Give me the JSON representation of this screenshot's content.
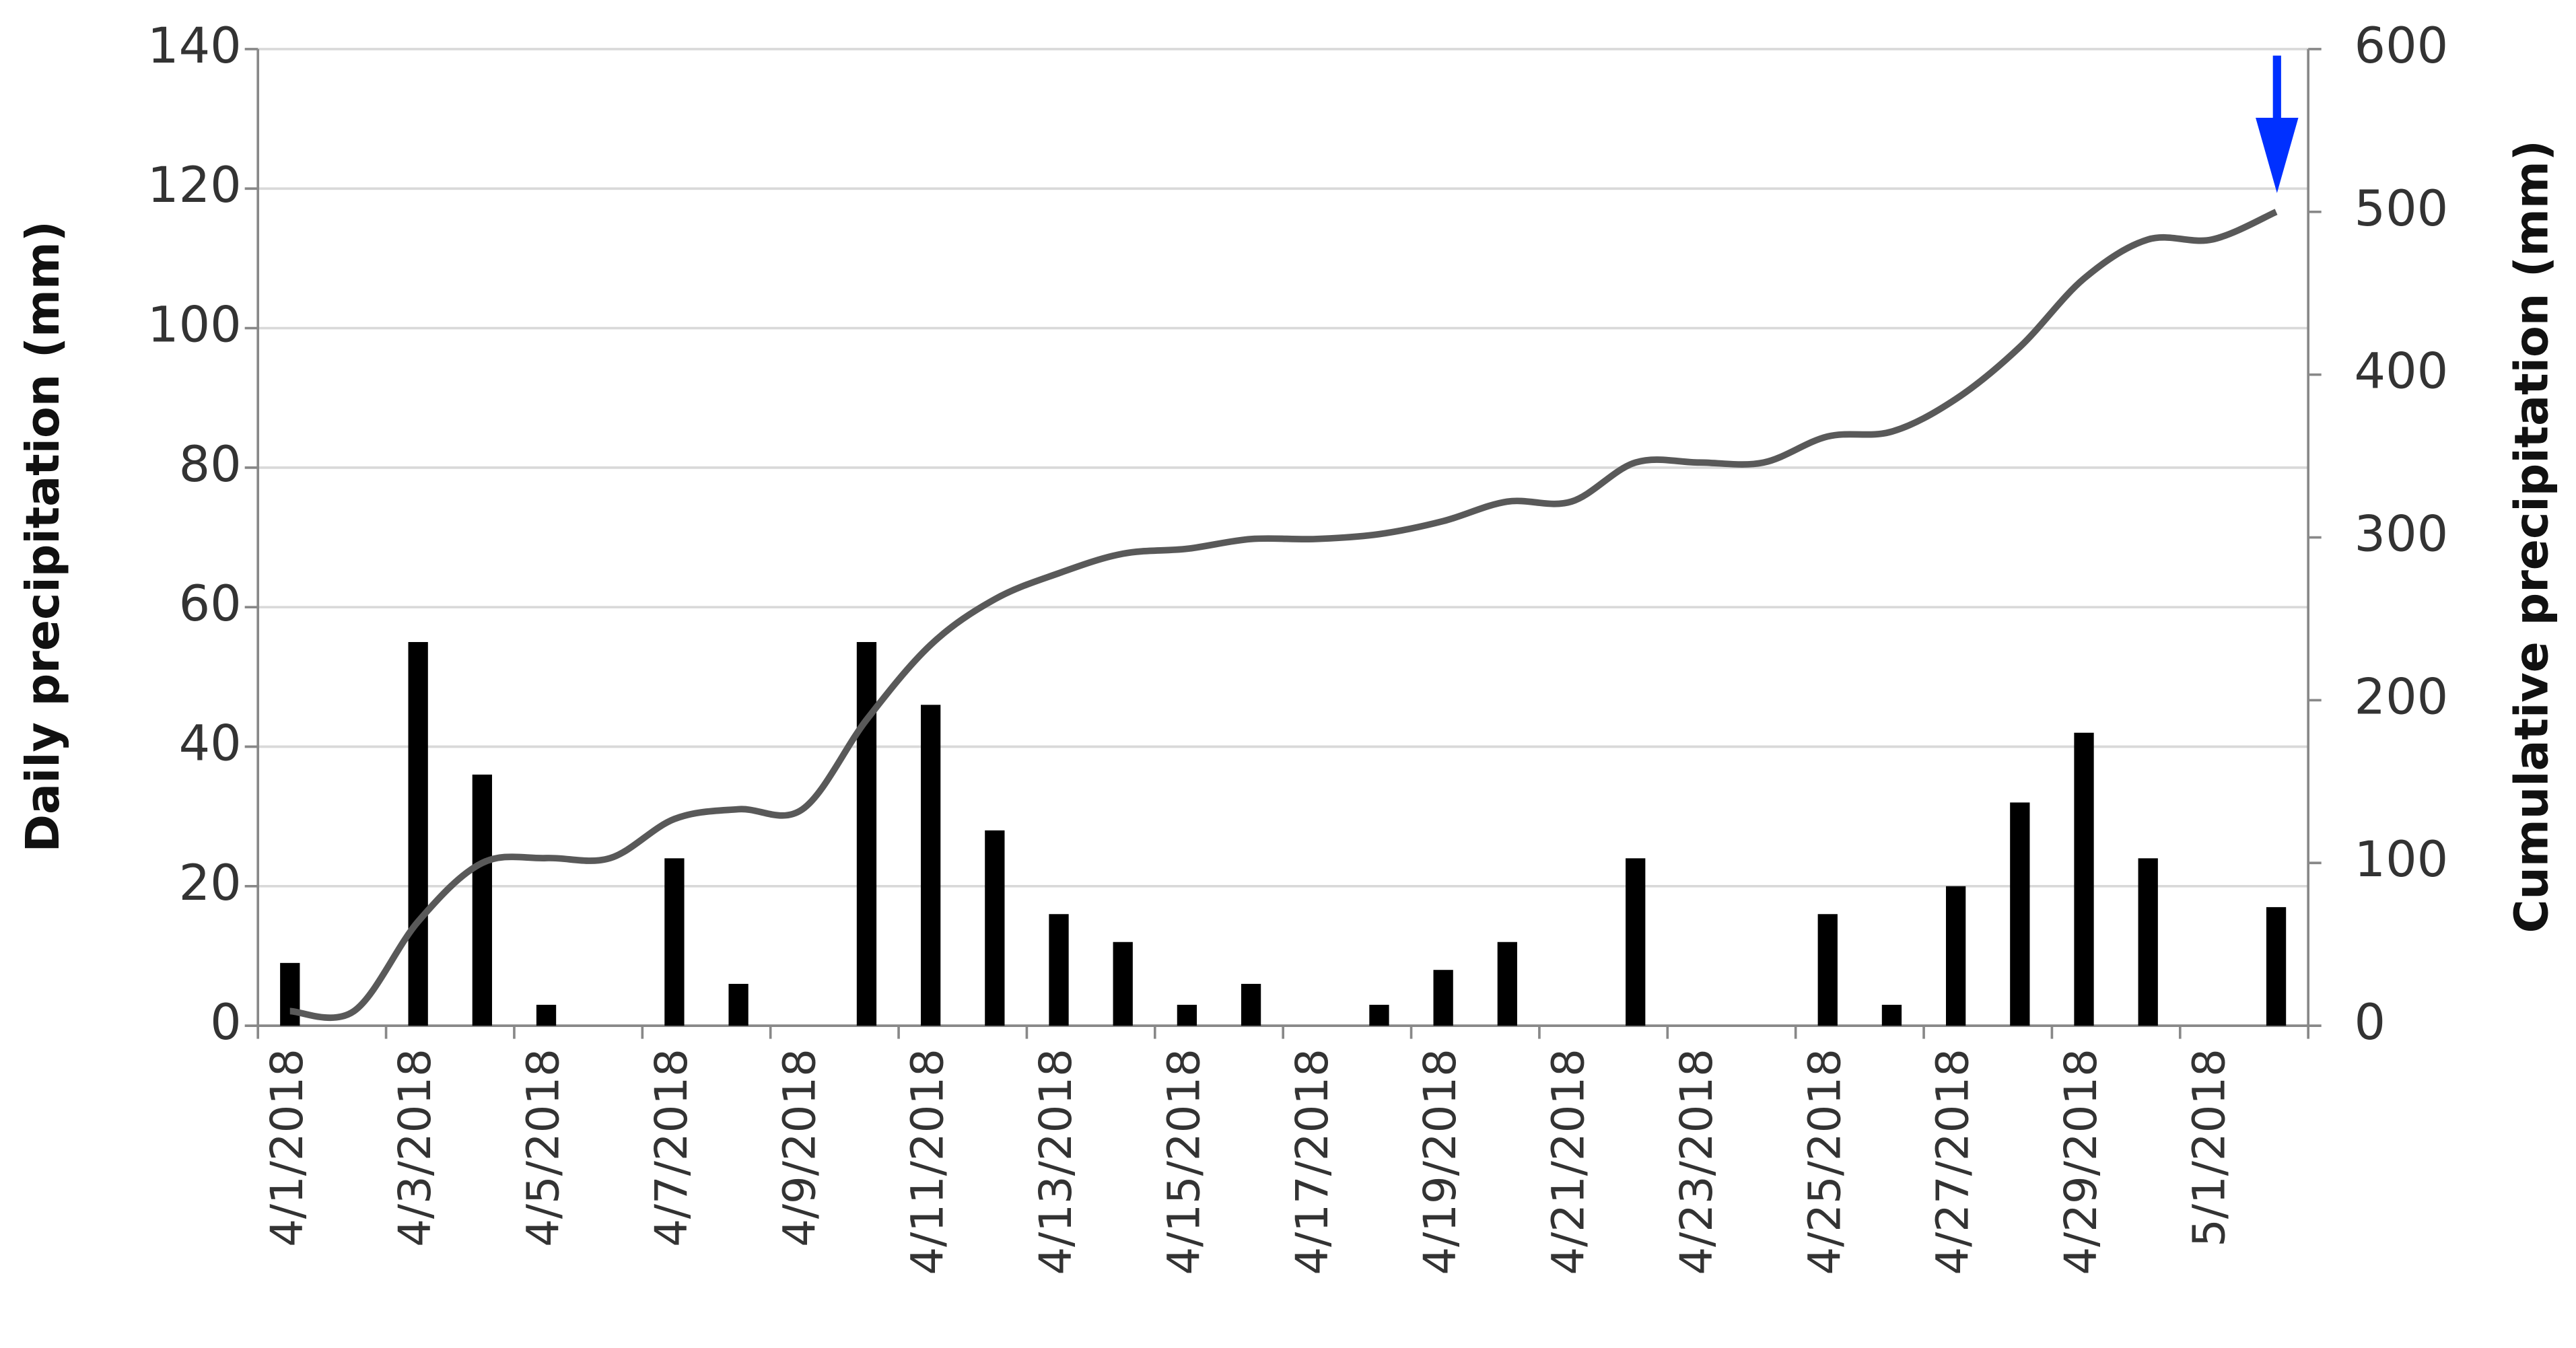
{
  "chart_data": {
    "type": "bar",
    "ylabel": "Daily precipitation (mm)",
    "y2label": "Cumulative precipitation (mm)",
    "categories": [
      "4/1/2018",
      null,
      "4/3/2018",
      null,
      "4/5/2018",
      null,
      "4/7/2018",
      null,
      "4/9/2018",
      null,
      "4/11/2018",
      null,
      "4/13/2018",
      null,
      "4/15/2018",
      null,
      "4/17/2018",
      null,
      "4/19/2018",
      null,
      "4/21/2018",
      null,
      "4/23/2018",
      null,
      "4/25/2018",
      null,
      "4/27/2018",
      null,
      "4/29/2018",
      null,
      "5/1/2018",
      null
    ],
    "series": [
      {
        "type": "bar",
        "color": "#000000",
        "values": [
          9,
          0,
          55,
          36,
          3,
          0,
          24,
          6,
          0,
          55,
          46,
          28,
          16,
          12,
          3,
          6,
          0,
          3,
          8,
          12,
          0,
          24,
          0,
          0,
          16,
          3,
          20,
          32,
          42,
          24,
          0,
          17
        ]
      },
      {
        "type": "line",
        "axis": "y2",
        "color": "#595959",
        "values": [
          9,
          9,
          64,
          100,
          103,
          103,
          127,
          133,
          133,
          188,
          234,
          262,
          278,
          290,
          293,
          299,
          299,
          302,
          310,
          322,
          322,
          346,
          346,
          346,
          362,
          365,
          385,
          417,
          459,
          483,
          483,
          500
        ]
      }
    ],
    "ylim": [
      0,
      140
    ],
    "yticks": [
      0,
      20,
      40,
      60,
      80,
      100,
      120,
      140
    ],
    "y2lim": [
      0,
      600
    ],
    "y2ticks": [
      0,
      100,
      200,
      300,
      400,
      500,
      600
    ],
    "grid": true
  }
}
